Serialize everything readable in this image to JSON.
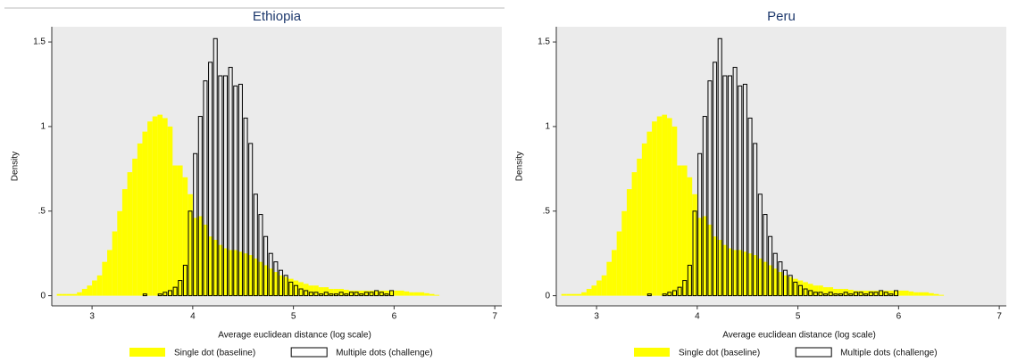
{
  "chart_data": [
    {
      "type": "histogram",
      "title": "Ethiopia",
      "xlabel": "Average euclidean distance (log scale)",
      "ylabel": "Density",
      "bins": [
        2.65,
        2.7,
        2.75,
        2.8,
        2.85,
        2.9,
        2.95,
        3.0,
        3.05,
        3.1,
        3.15,
        3.2,
        3.25,
        3.3,
        3.35,
        3.4,
        3.45,
        3.5,
        3.55,
        3.6,
        3.65,
        3.7,
        3.75,
        3.8,
        3.85,
        3.9,
        3.95,
        4.0,
        4.05,
        4.1,
        4.15,
        4.2,
        4.25,
        4.3,
        4.35,
        4.4,
        4.45,
        4.5,
        4.55,
        4.6,
        4.65,
        4.7,
        4.75,
        4.8,
        4.85,
        4.9,
        4.95,
        5.0,
        5.05,
        5.1,
        5.15,
        5.2,
        5.25,
        5.3,
        5.35,
        5.4,
        5.45,
        5.5,
        5.55,
        5.6,
        5.65,
        5.7,
        5.75,
        5.8,
        5.85,
        5.9,
        5.95,
        6.0,
        6.05,
        6.1,
        6.15,
        6.2,
        6.25,
        6.3,
        6.35,
        6.4,
        6.45
      ],
      "series": [
        {
          "name": "Single dot (baseline)",
          "color": "#ffff00",
          "fill": "solid",
          "values": [
            0.01,
            0.01,
            0.01,
            0.01,
            0.02,
            0.04,
            0.06,
            0.09,
            0.12,
            0.2,
            0.27,
            0.38,
            0.5,
            0.63,
            0.73,
            0.81,
            0.9,
            0.97,
            1.03,
            1.06,
            1.07,
            1.05,
            1.0,
            0.77,
            0.77,
            0.7,
            0.6,
            0.46,
            0.47,
            0.42,
            0.35,
            0.33,
            0.3,
            0.28,
            0.27,
            0.27,
            0.26,
            0.25,
            0.24,
            0.22,
            0.2,
            0.18,
            0.16,
            0.14,
            0.12,
            0.11,
            0.1,
            0.09,
            0.08,
            0.07,
            0.06,
            0.06,
            0.05,
            0.05,
            0.04,
            0.04,
            0.04,
            0.035,
            0.03,
            0.03,
            0.03,
            0.03,
            0.03,
            0.03,
            0.03,
            0.03,
            0.03,
            0.03,
            0.03,
            0.025,
            0.02,
            0.02,
            0.02,
            0.015,
            0.01,
            0.005
          ]
        },
        {
          "name": "Multiple dots (challenge)",
          "color": "#000000",
          "fill": "none",
          "values": [
            0,
            0,
            0,
            0,
            0,
            0,
            0,
            0,
            0,
            0,
            0,
            0,
            0,
            0,
            0,
            0,
            0,
            0.01,
            0,
            0,
            0.01,
            0.02,
            0.03,
            0.05,
            0.09,
            0.18,
            0.5,
            0.84,
            1.06,
            1.27,
            1.38,
            1.52,
            1.3,
            1.3,
            1.35,
            1.24,
            1.25,
            1.05,
            0.9,
            0.6,
            0.48,
            0.35,
            0.25,
            0.2,
            0.15,
            0.12,
            0.08,
            0.06,
            0.04,
            0.03,
            0.02,
            0.02,
            0.01,
            0.02,
            0.01,
            0.01,
            0.02,
            0.01,
            0.02,
            0.02,
            0.01,
            0.02,
            0.02,
            0.03,
            0.02,
            0.01,
            0.03,
            0,
            0,
            0,
            0,
            0,
            0,
            0,
            0,
            0
          ]
        }
      ],
      "xlim": [
        2.6,
        7.07
      ],
      "xticks": [
        3,
        4,
        5,
        6,
        7
      ],
      "ylim": [
        -0.06,
        1.59
      ],
      "yticks": [
        0,
        {
          "value": 0.5,
          "label": ".5"
        },
        1,
        1.5
      ],
      "grid": false
    },
    {
      "type": "histogram",
      "title": "Peru",
      "xlabel": "Average euclidean distance (log scale)",
      "ylabel": "Density",
      "bins": [
        2.65,
        2.7,
        2.75,
        2.8,
        2.85,
        2.9,
        2.95,
        3.0,
        3.05,
        3.1,
        3.15,
        3.2,
        3.25,
        3.3,
        3.35,
        3.4,
        3.45,
        3.5,
        3.55,
        3.6,
        3.65,
        3.7,
        3.75,
        3.8,
        3.85,
        3.9,
        3.95,
        4.0,
        4.05,
        4.1,
        4.15,
        4.2,
        4.25,
        4.3,
        4.35,
        4.4,
        4.45,
        4.5,
        4.55,
        4.6,
        4.65,
        4.7,
        4.75,
        4.8,
        4.85,
        4.9,
        4.95,
        5.0,
        5.05,
        5.1,
        5.15,
        5.2,
        5.25,
        5.3,
        5.35,
        5.4,
        5.45,
        5.5,
        5.55,
        5.6,
        5.65,
        5.7,
        5.75,
        5.8,
        5.85,
        5.9,
        5.95,
        6.0,
        6.05,
        6.1,
        6.15,
        6.2,
        6.25,
        6.3,
        6.35,
        6.4,
        6.45
      ],
      "series": [
        {
          "name": "Single dot (baseline)",
          "color": "#ffff00",
          "fill": "solid",
          "values": [
            0.01,
            0.01,
            0.01,
            0.01,
            0.02,
            0.04,
            0.06,
            0.09,
            0.12,
            0.2,
            0.27,
            0.38,
            0.5,
            0.63,
            0.73,
            0.81,
            0.9,
            0.97,
            1.03,
            1.06,
            1.07,
            1.05,
            1.0,
            0.77,
            0.77,
            0.7,
            0.6,
            0.46,
            0.47,
            0.42,
            0.35,
            0.33,
            0.3,
            0.28,
            0.27,
            0.27,
            0.26,
            0.25,
            0.24,
            0.22,
            0.2,
            0.18,
            0.16,
            0.14,
            0.12,
            0.11,
            0.1,
            0.09,
            0.08,
            0.07,
            0.06,
            0.06,
            0.05,
            0.05,
            0.04,
            0.04,
            0.04,
            0.035,
            0.03,
            0.03,
            0.03,
            0.03,
            0.03,
            0.03,
            0.03,
            0.03,
            0.03,
            0.03,
            0.03,
            0.025,
            0.02,
            0.02,
            0.02,
            0.015,
            0.01,
            0.005
          ]
        },
        {
          "name": "Multiple dots (challenge)",
          "color": "#000000",
          "fill": "none",
          "values": [
            0,
            0,
            0,
            0,
            0,
            0,
            0,
            0,
            0,
            0,
            0,
            0,
            0,
            0,
            0,
            0,
            0,
            0.01,
            0,
            0,
            0.01,
            0.02,
            0.03,
            0.05,
            0.09,
            0.18,
            0.5,
            0.84,
            1.06,
            1.27,
            1.38,
            1.52,
            1.3,
            1.3,
            1.35,
            1.24,
            1.25,
            1.05,
            0.9,
            0.6,
            0.48,
            0.35,
            0.25,
            0.2,
            0.15,
            0.12,
            0.08,
            0.06,
            0.04,
            0.03,
            0.02,
            0.02,
            0.01,
            0.02,
            0.01,
            0.01,
            0.02,
            0.01,
            0.02,
            0.02,
            0.01,
            0.02,
            0.02,
            0.03,
            0.02,
            0.01,
            0.03,
            0,
            0,
            0,
            0,
            0,
            0,
            0,
            0,
            0
          ]
        }
      ],
      "xlim": [
        2.6,
        7.07
      ],
      "xticks": [
        3,
        4,
        5,
        6,
        7
      ],
      "ylim": [
        -0.06,
        1.59
      ],
      "yticks": [
        0,
        {
          "value": 0.5,
          "label": ".5"
        },
        1,
        1.5
      ],
      "grid": false
    }
  ]
}
